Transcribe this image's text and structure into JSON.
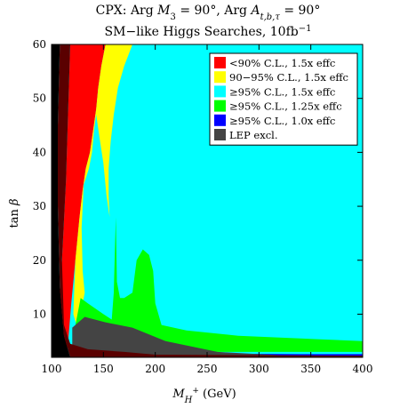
{
  "chart_data": {
    "type": "area",
    "title_line1": "CPX:  Arg M₃ = 90°,  Arg A_t,b,τ = 90°",
    "title_line2": "SM−like Higgs Searches, 10fb⁻¹",
    "xlabel": "M_H+ (GeV)",
    "ylabel": "tan β",
    "xlim": [
      100,
      400
    ],
    "ylim": [
      2,
      60
    ],
    "xticks": [
      "100",
      "150",
      "200",
      "250",
      "300",
      "350",
      "400"
    ],
    "yticks": [
      "10",
      "20",
      "30",
      "40",
      "50",
      "60"
    ],
    "legend_position": "top-right",
    "background_region": {
      "color": "#00ffff"
    },
    "series": [
      {
        "name": "<90% C.L., 1.5x effc",
        "color": "#ff0000",
        "polygon": [
          [
            118,
            60
          ],
          [
            152,
            60
          ],
          [
            148,
            56
          ],
          [
            145,
            52
          ],
          [
            143,
            48
          ],
          [
            140,
            44
          ],
          [
            137,
            40
          ],
          [
            133,
            37
          ],
          [
            130,
            33
          ],
          [
            127,
            28
          ],
          [
            123,
            20
          ],
          [
            119,
            12
          ],
          [
            116,
            5
          ],
          [
            114,
            2
          ],
          [
            104,
            2
          ],
          [
            106,
            8
          ],
          [
            110,
            20
          ],
          [
            114,
            35
          ],
          [
            116,
            48
          ]
        ]
      },
      {
        "name": "90−95% C.L., 1.5x effc",
        "color": "#ffff00",
        "polygon": [
          [
            152,
            60
          ],
          [
            178,
            60
          ],
          [
            170,
            56
          ],
          [
            164,
            52
          ],
          [
            160,
            47
          ],
          [
            157,
            42
          ],
          [
            155,
            37
          ],
          [
            155,
            32
          ],
          [
            156,
            28
          ],
          [
            153,
            32
          ],
          [
            150,
            38
          ],
          [
            146,
            43
          ],
          [
            143,
            47
          ],
          [
            141,
            44
          ],
          [
            139,
            40
          ],
          [
            136,
            37
          ],
          [
            131,
            34
          ],
          [
            129,
            26
          ],
          [
            130,
            18
          ],
          [
            132,
            14
          ],
          [
            128,
            10
          ],
          [
            124,
            8
          ],
          [
            121,
            10
          ],
          [
            123,
            20
          ],
          [
            127,
            28
          ],
          [
            130,
            33
          ],
          [
            133,
            37
          ],
          [
            137,
            40
          ],
          [
            140,
            44
          ],
          [
            143,
            48
          ],
          [
            145,
            52
          ],
          [
            148,
            56
          ]
        ]
      },
      {
        "name": "≥95% C.L., 1.25x effc",
        "color": "#00ff00",
        "polygon": [
          [
            128,
            13
          ],
          [
            135,
            12
          ],
          [
            150,
            10
          ],
          [
            158,
            9
          ],
          [
            160,
            14
          ],
          [
            162,
            28
          ],
          [
            163,
            16
          ],
          [
            166,
            13
          ],
          [
            170,
            13
          ],
          [
            178,
            14
          ],
          [
            182,
            20
          ],
          [
            188,
            22
          ],
          [
            194,
            21
          ],
          [
            198,
            18
          ],
          [
            200,
            12
          ],
          [
            206,
            8
          ],
          [
            230,
            7
          ],
          [
            280,
            6
          ],
          [
            340,
            5.5
          ],
          [
            400,
            5
          ],
          [
            400,
            3
          ],
          [
            120,
            3
          ],
          [
            122,
            7
          ],
          [
            125,
            10
          ]
        ]
      },
      {
        "name": "≥95% C.L., 1.0x effc",
        "color": "#0000ff",
        "polygon": [
          [
            130,
            5
          ],
          [
            140,
            4.2
          ],
          [
            155,
            3.4
          ],
          [
            170,
            3.0
          ],
          [
            200,
            2.8
          ],
          [
            260,
            2.7
          ],
          [
            340,
            2.6
          ],
          [
            400,
            2.6
          ],
          [
            400,
            2
          ],
          [
            130,
            2
          ]
        ]
      },
      {
        "name": "LEP excl.",
        "color": "#444444",
        "polygon": [
          [
            120,
            7.5
          ],
          [
            132,
            9.5
          ],
          [
            152,
            8.5
          ],
          [
            178,
            7.5
          ],
          [
            210,
            5
          ],
          [
            260,
            3
          ],
          [
            320,
            2.4
          ],
          [
            400,
            2.3
          ],
          [
            400,
            2
          ],
          [
            120,
            2
          ]
        ]
      }
    ],
    "dark_regions": [
      {
        "color": "#000000",
        "polygon": [
          [
            100,
            2
          ],
          [
            100,
            60
          ],
          [
            108,
            60
          ],
          [
            106,
            45
          ],
          [
            106,
            30
          ],
          [
            108,
            15
          ],
          [
            112,
            6
          ],
          [
            118,
            2
          ]
        ]
      },
      {
        "color": "#5a0000",
        "polygon": [
          [
            108,
            60
          ],
          [
            118,
            60
          ],
          [
            116,
            48
          ],
          [
            114,
            35
          ],
          [
            110,
            20
          ],
          [
            112,
            8
          ],
          [
            118,
            4.5
          ],
          [
            135,
            3.5
          ],
          [
            170,
            3
          ],
          [
            200,
            2.5
          ],
          [
            400,
            2.3
          ],
          [
            400,
            2
          ],
          [
            118,
            2
          ],
          [
            112,
            6
          ],
          [
            108,
            15
          ],
          [
            106,
            30
          ],
          [
            106,
            45
          ]
        ]
      }
    ],
    "legend": [
      {
        "label": "<90% C.L., 1.5x effc",
        "color": "#ff0000"
      },
      {
        "label": "90−95% C.L., 1.5x effc",
        "color": "#ffff00"
      },
      {
        "label": "≥95% C.L., 1.5x effc",
        "color": "#00ffff"
      },
      {
        "label": "≥95% C.L., 1.25x effc",
        "color": "#00ff00"
      },
      {
        "label": "≥95% C.L., 1.0x effc",
        "color": "#0000ff"
      },
      {
        "label": "LEP excl.",
        "color": "#444444"
      }
    ]
  }
}
